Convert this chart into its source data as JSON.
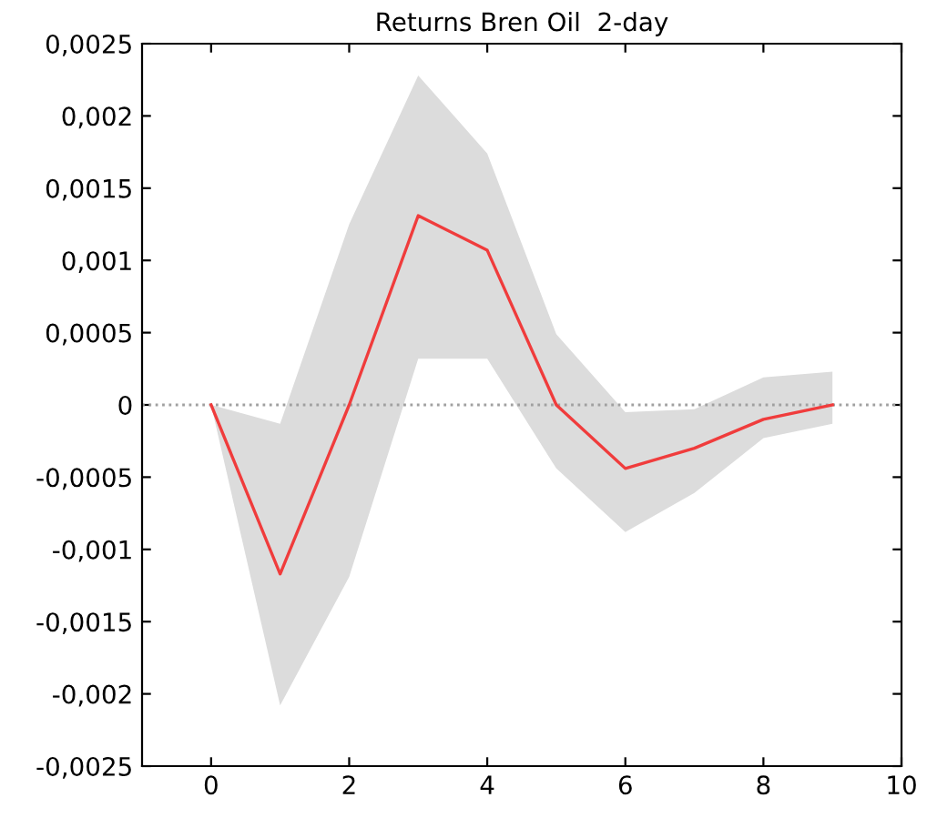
{
  "chart_data": {
    "type": "line",
    "title": "Returns Bren Oil  2-day",
    "series": [
      {
        "color": "#f03c3c",
        "x": [
          0,
          1,
          2,
          3,
          4,
          5,
          6,
          7,
          8,
          9
        ],
        "values": [
          0,
          -0.00117,
          0,
          0.00131,
          0.00107,
          0,
          -0.00044,
          -0.0003,
          -0.0001,
          0
        ],
        "lower": [
          0,
          -0.00208,
          -0.00119,
          0.00032,
          0.00032,
          -0.00044,
          -0.00088,
          -0.00061,
          -0.00023,
          -0.00013
        ],
        "upper": [
          0,
          -0.00013,
          0.00125,
          0.00228,
          0.00174,
          0.00049,
          -5e-05,
          -3e-05,
          0.00019,
          0.00023
        ]
      }
    ],
    "xlim": [
      -1,
      10
    ],
    "xticks": [
      0,
      2,
      4,
      6,
      8,
      10
    ],
    "ylim": [
      -0.0025,
      0.0025
    ],
    "yticks": [
      {
        "value": -0.0025,
        "label": "-0,0025"
      },
      {
        "value": -0.002,
        "label": "-0,002"
      },
      {
        "value": -0.0015,
        "label": "-0,0015"
      },
      {
        "value": -0.001,
        "label": "-0,001"
      },
      {
        "value": -0.0005,
        "label": "-0,0005"
      },
      {
        "value": 0,
        "label": "0"
      },
      {
        "value": 0.0005,
        "label": "0,0005"
      },
      {
        "value": 0.001,
        "label": "0,001"
      },
      {
        "value": 0.0015,
        "label": "0,0015"
      },
      {
        "value": 0.002,
        "label": "0,002"
      },
      {
        "value": 0.0025,
        "label": "0,0025"
      }
    ],
    "ref_lines": [
      {
        "axis": "y",
        "value": 0,
        "color": "#a0a0a0",
        "line_style": "dotted"
      }
    ],
    "grid": false,
    "legend": false
  }
}
